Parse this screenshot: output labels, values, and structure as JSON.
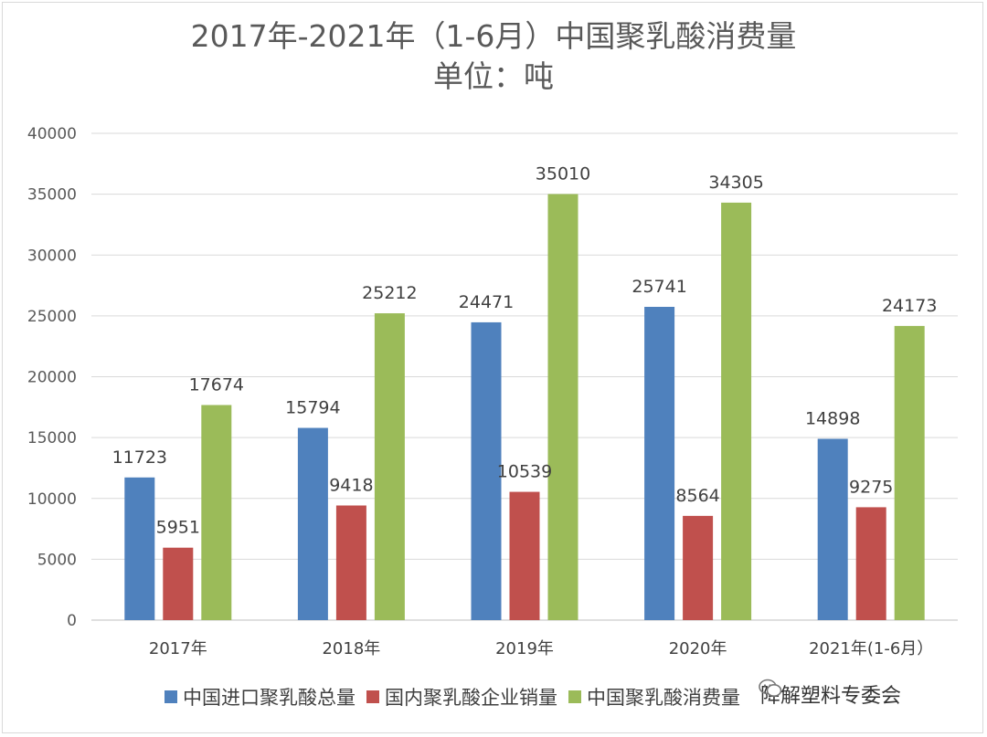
{
  "title_line1": "2017年-2021年（1-6月）中国聚乳酸消费量",
  "title_line2": "单位：吨",
  "watermark_text": "降解塑料专委会",
  "chart_data": {
    "type": "bar",
    "title": "2017年-2021年（1-6月）中国聚乳酸消费量",
    "subtitle": "单位：吨",
    "categories": [
      "2017年",
      "2018年",
      "2019年",
      "2020年",
      "2021年(1-6月）"
    ],
    "series": [
      {
        "name": "中国进口聚乳酸总量",
        "color": "#4f81bd",
        "values": [
          11723,
          15794,
          24471,
          25741,
          14898
        ]
      },
      {
        "name": "国内聚乳酸企业销量",
        "color": "#c0504d",
        "values": [
          5951,
          9418,
          10539,
          8564,
          9275
        ]
      },
      {
        "name": "中国聚乳酸消费量",
        "color": "#9bbb59",
        "values": [
          17674,
          25212,
          35010,
          34305,
          24173
        ]
      }
    ],
    "ylim": [
      0,
      40000
    ],
    "yticks": [
      0,
      5000,
      10000,
      15000,
      20000,
      25000,
      30000,
      35000,
      40000
    ],
    "grid": true,
    "legend_position": "bottom",
    "data_labels": true
  }
}
